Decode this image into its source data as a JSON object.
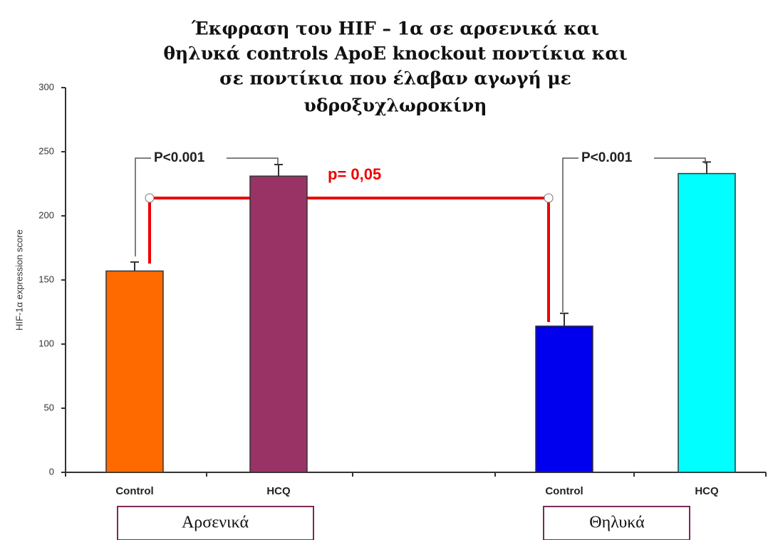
{
  "chart_data": {
    "type": "bar",
    "title": [
      "Έκφραση του HIF – 1α σε αρσενικά και",
      "θηλυκά controls ApoE knockout ποντίκια και",
      "σε ποντίκια που έλαβαν αγωγή με",
      "υδροξυχλωροκίνη"
    ],
    "y_label": "HIF-1α expression score",
    "categories": [
      "Control",
      "HCQ",
      "Control",
      "HCQ"
    ],
    "values": [
      157,
      231,
      114,
      233
    ],
    "errors": [
      7,
      9,
      10,
      9
    ],
    "colors": [
      "#ff6a00",
      "#993366",
      "#0000ee",
      "#00ffff"
    ],
    "groups": [
      "Αρσενικά",
      "Θηλυκά"
    ],
    "annotations": [
      "P<0.001",
      "P<0.001",
      "p= 0,05"
    ],
    "ylim": [
      0,
      300
    ],
    "yticks": [
      0,
      50,
      100,
      150,
      200,
      250,
      300
    ]
  }
}
